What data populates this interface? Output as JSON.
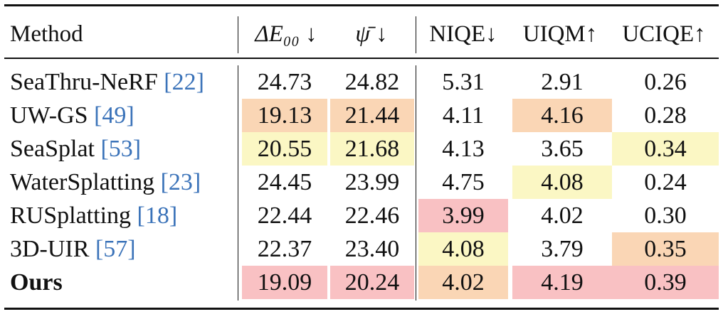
{
  "colors": {
    "best": "#f9c1c3",
    "second": "#fad6b5",
    "third": "#fbf7c4",
    "cite": "#3b73b9"
  },
  "header": {
    "method": "Method",
    "de00": "ΔE₀₀ ↓",
    "psi": "ψ̄ ↓",
    "niqe": "NIQE↓",
    "uiqm": "UIQM↑",
    "uciqe": "UCIQE↑"
  },
  "rows": [
    {
      "name": "SeaThru-NeRF",
      "ref": "[22]",
      "bold": false,
      "values": [
        "24.73",
        "24.82",
        "5.31",
        "2.91",
        "0.26"
      ],
      "ranks": [
        0,
        0,
        0,
        0,
        0
      ]
    },
    {
      "name": "UW-GS",
      "ref": "[49]",
      "bold": false,
      "values": [
        "19.13",
        "21.44",
        "4.11",
        "4.16",
        "0.28"
      ],
      "ranks": [
        2,
        2,
        0,
        2,
        0
      ]
    },
    {
      "name": "SeaSplat",
      "ref": "[53]",
      "bold": false,
      "values": [
        "20.55",
        "21.68",
        "4.13",
        "3.65",
        "0.34"
      ],
      "ranks": [
        3,
        3,
        0,
        0,
        3
      ]
    },
    {
      "name": "WaterSplatting",
      "ref": "[23]",
      "bold": false,
      "values": [
        "24.45",
        "23.99",
        "4.75",
        "4.08",
        "0.24"
      ],
      "ranks": [
        0,
        0,
        0,
        3,
        0
      ]
    },
    {
      "name": "RUSplatting",
      "ref": "[18]",
      "bold": false,
      "values": [
        "22.44",
        "22.46",
        "3.99",
        "4.02",
        "0.30"
      ],
      "ranks": [
        0,
        0,
        1,
        0,
        0
      ]
    },
    {
      "name": "3D-UIR",
      "ref": "[57]",
      "bold": false,
      "values": [
        "22.37",
        "23.40",
        "4.08",
        "3.79",
        "0.35"
      ],
      "ranks": [
        0,
        0,
        3,
        0,
        2
      ]
    },
    {
      "name": "Ours",
      "ref": "",
      "bold": true,
      "values": [
        "19.09",
        "20.24",
        "4.02",
        "4.19",
        "0.39"
      ],
      "ranks": [
        1,
        1,
        2,
        1,
        1
      ]
    }
  ]
}
